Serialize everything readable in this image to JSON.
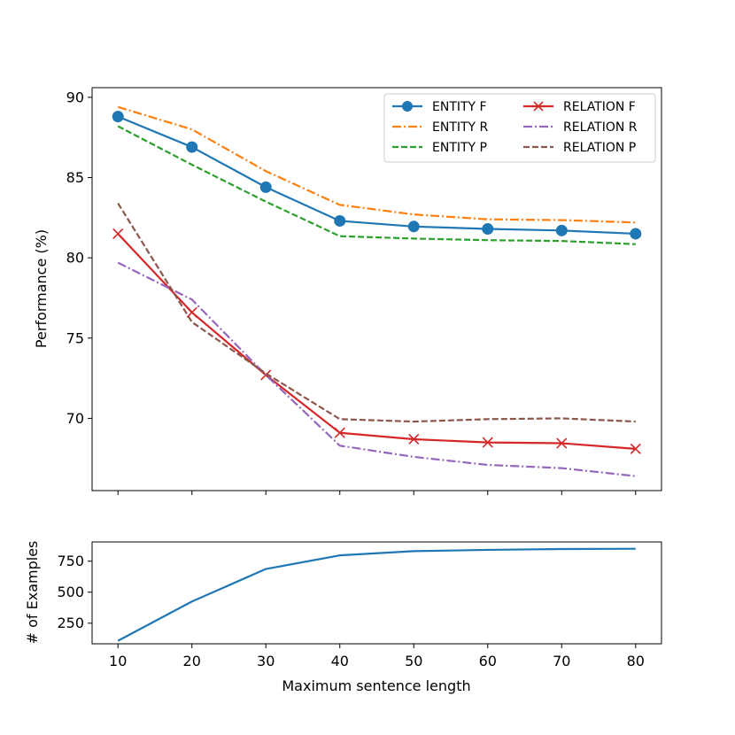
{
  "chart_data": [
    {
      "type": "line",
      "ylabel": "Performance (%)",
      "xlabel": "",
      "x": [
        10,
        20,
        30,
        40,
        50,
        60,
        70,
        80
      ],
      "xlim": [
        6.5,
        83.5
      ],
      "ylim": [
        65.5,
        90.6
      ],
      "yticks": [
        70,
        75,
        80,
        85,
        90
      ],
      "xticks": [
        10,
        20,
        30,
        40,
        50,
        60,
        70,
        80
      ],
      "legend_position": "top-right",
      "legend_columns": 2,
      "series": [
        {
          "name": "ENTITY F",
          "color": "#1f77b4",
          "style": "solid",
          "marker": "circle",
          "values": [
            88.8,
            86.9,
            84.4,
            82.3,
            81.95,
            81.8,
            81.7,
            81.5
          ]
        },
        {
          "name": "ENTITY R",
          "color": "#ff7f0e",
          "style": "dashdot",
          "marker": "none",
          "values": [
            89.4,
            88.0,
            85.4,
            83.3,
            82.7,
            82.4,
            82.35,
            82.2
          ]
        },
        {
          "name": "ENTITY P",
          "color": "#2ca02c",
          "style": "dashed",
          "marker": "none",
          "values": [
            88.2,
            85.8,
            83.5,
            81.35,
            81.2,
            81.1,
            81.05,
            80.85
          ]
        },
        {
          "name": "RELATION F",
          "color": "#d62728",
          "style": "solid",
          "marker": "x",
          "values": [
            81.5,
            76.6,
            72.7,
            69.1,
            68.7,
            68.5,
            68.45,
            68.1
          ]
        },
        {
          "name": "RELATION R",
          "color": "#9467bd",
          "style": "dashdot",
          "marker": "none",
          "values": [
            79.7,
            77.4,
            72.7,
            68.3,
            67.6,
            67.1,
            66.9,
            66.4
          ]
        },
        {
          "name": "RELATION P",
          "color": "#8c564b",
          "style": "dashed",
          "marker": "none",
          "values": [
            83.4,
            76.0,
            72.8,
            69.95,
            69.8,
            69.95,
            70.0,
            69.8
          ]
        }
      ]
    },
    {
      "type": "line",
      "xlabel": "Maximum sentence length",
      "ylabel": "# of Examples",
      "x": [
        10,
        20,
        30,
        40,
        50,
        60,
        70,
        80
      ],
      "xlim": [
        6.5,
        83.5
      ],
      "ylim": [
        84,
        905
      ],
      "yticks": [
        250,
        500,
        750
      ],
      "xticks": [
        10,
        20,
        30,
        40,
        50,
        60,
        70,
        80
      ],
      "series": [
        {
          "name": "# of Examples",
          "color": "#1f77b4",
          "style": "solid",
          "marker": "none",
          "values": [
            108,
            425,
            687,
            797,
            831,
            841,
            848,
            850
          ]
        }
      ]
    }
  ]
}
